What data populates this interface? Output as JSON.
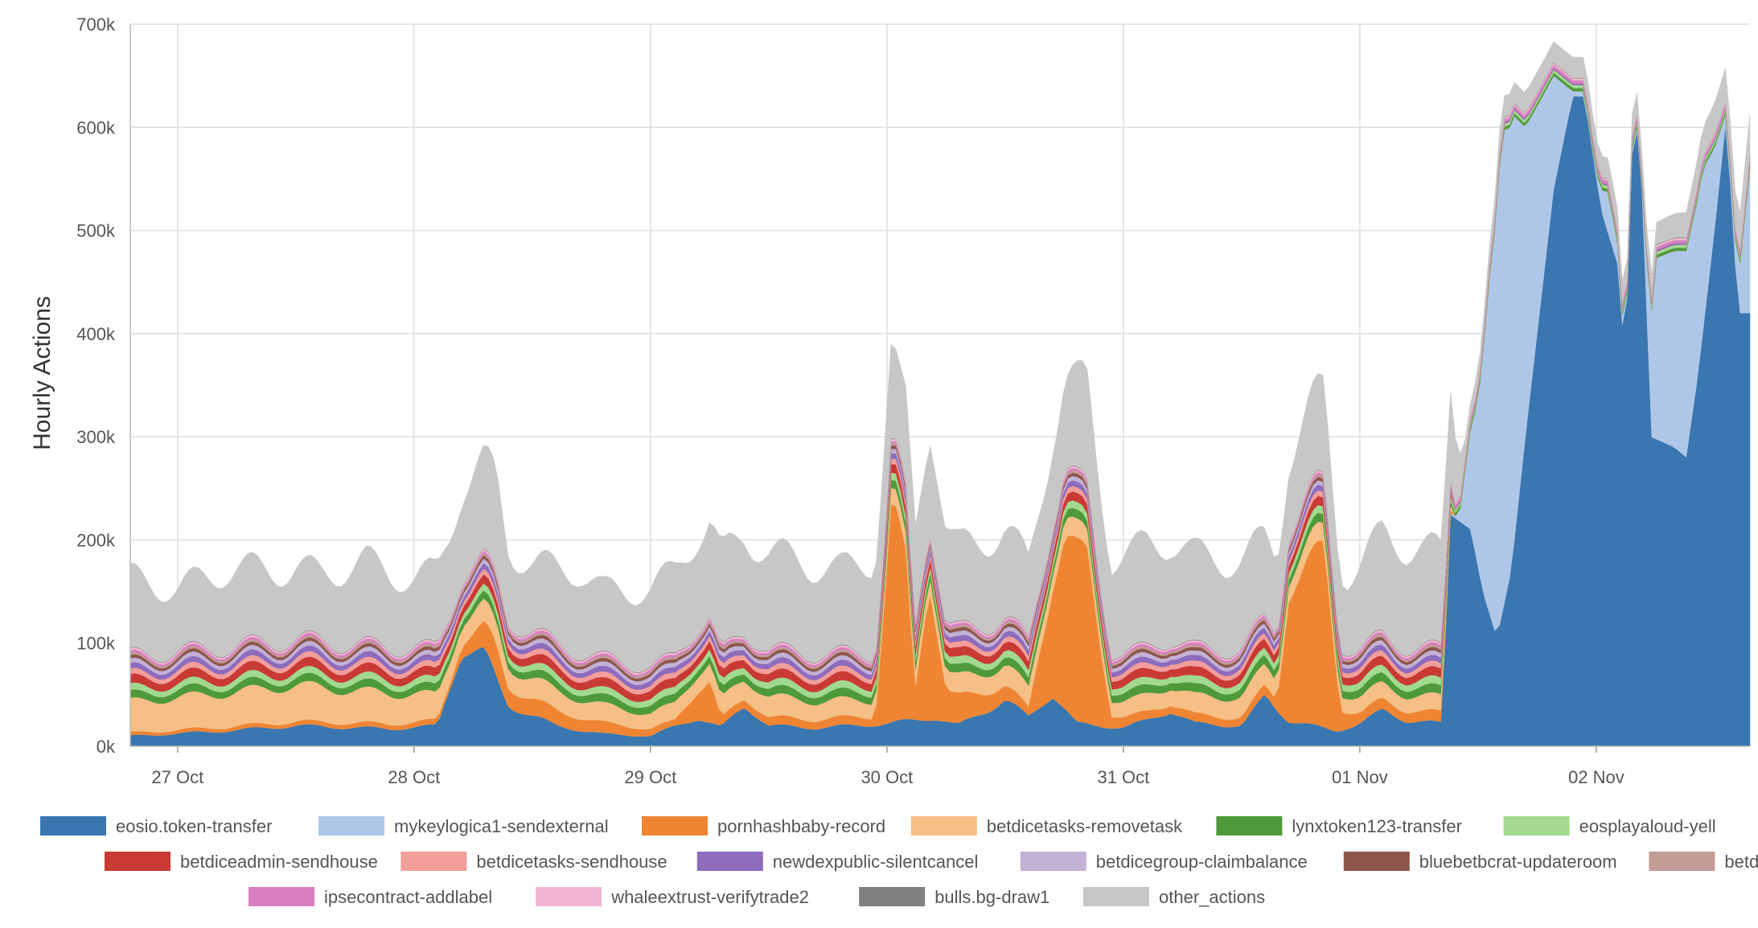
{
  "chart_data": {
    "type": "area",
    "stacked": true,
    "title": "",
    "xlabel": "",
    "ylabel": "Hourly Actions",
    "ylim": [
      0,
      700000
    ],
    "y_ticks": [
      "0k",
      "100k",
      "200k",
      "300k",
      "400k",
      "500k",
      "600k",
      "700k"
    ],
    "x_ticks": [
      "27 Oct",
      "28 Oct",
      "29 Oct",
      "30 Oct",
      "31 Oct",
      "01 Nov",
      "02 Nov"
    ],
    "x_range_days": [
      -0.2,
      6.65
    ],
    "grid": true,
    "legend_position": "bottom",
    "series": [
      {
        "name": "eosio.token-transfer",
        "color": "#3a76af",
        "anchors": [
          [
            -0.2,
            10000
          ],
          [
            0.2,
            15000
          ],
          [
            0.5,
            20000
          ],
          [
            0.9,
            17000
          ],
          [
            1.1,
            20000
          ],
          [
            1.2,
            95000
          ],
          [
            1.3,
            88000
          ],
          [
            1.4,
            40000
          ],
          [
            1.6,
            20000
          ],
          [
            1.8,
            12000
          ],
          [
            2.0,
            10000
          ],
          [
            2.2,
            28000
          ],
          [
            2.3,
            18000
          ],
          [
            2.4,
            40000
          ],
          [
            2.5,
            20000
          ],
          [
            2.7,
            18000
          ],
          [
            3.0,
            22000
          ],
          [
            3.2,
            28000
          ],
          [
            3.3,
            20000
          ],
          [
            3.5,
            45000
          ],
          [
            3.6,
            28000
          ],
          [
            3.7,
            52000
          ],
          [
            3.8,
            22000
          ],
          [
            4.0,
            18000
          ],
          [
            4.1,
            25000
          ],
          [
            4.2,
            35000
          ],
          [
            4.3,
            22000
          ],
          [
            4.5,
            20000
          ],
          [
            4.6,
            48000
          ],
          [
            4.7,
            25000
          ],
          [
            4.9,
            15000
          ],
          [
            5.0,
            22000
          ],
          [
            5.1,
            35000
          ],
          [
            5.2,
            25000
          ],
          [
            5.35,
            22000
          ],
          [
            5.38,
            225000
          ],
          [
            5.47,
            210000
          ],
          [
            5.52,
            150000
          ],
          [
            5.58,
            105000
          ],
          [
            5.64,
            170000
          ],
          [
            5.7,
            300000
          ],
          [
            5.76,
            420000
          ],
          [
            5.82,
            540000
          ],
          [
            5.9,
            630000
          ],
          [
            5.95,
            630000
          ],
          [
            6.02,
            520000
          ],
          [
            6.1,
            460000
          ],
          [
            6.12,
            360000
          ],
          [
            6.16,
            630000
          ],
          [
            6.2,
            520000
          ],
          [
            6.23,
            300000
          ],
          [
            6.33,
            290000
          ],
          [
            6.38,
            280000
          ],
          [
            6.43,
            360000
          ],
          [
            6.5,
            500000
          ],
          [
            6.55,
            610000
          ],
          [
            6.6,
            420000
          ],
          [
            6.65,
            420000
          ]
        ]
      },
      {
        "name": "mykeylogica1-sendexternal",
        "color": "#aec7e8",
        "anchors": [
          [
            -0.2,
            0
          ],
          [
            5.36,
            0
          ],
          [
            5.42,
            3000
          ],
          [
            5.5,
            160000
          ],
          [
            5.55,
            330000
          ],
          [
            5.6,
            470000
          ],
          [
            5.65,
            420000
          ],
          [
            5.7,
            300000
          ],
          [
            5.82,
            110000
          ],
          [
            5.9,
            5000
          ],
          [
            6.0,
            5000
          ],
          [
            6.05,
            40000
          ],
          [
            6.12,
            5000
          ],
          [
            6.2,
            5000
          ],
          [
            6.25,
            175000
          ],
          [
            6.38,
            200000
          ],
          [
            6.45,
            160000
          ],
          [
            6.5,
            80000
          ],
          [
            6.55,
            5000
          ],
          [
            6.6,
            30000
          ],
          [
            6.65,
            140000
          ]
        ]
      },
      {
        "name": "pornhashbaby-record",
        "color": "#ef8532",
        "anchors": [
          [
            -0.2,
            3000
          ],
          [
            1.15,
            5000
          ],
          [
            1.35,
            30000
          ],
          [
            1.4,
            18000
          ],
          [
            2.1,
            5000
          ],
          [
            2.25,
            40000
          ],
          [
            2.3,
            8000
          ],
          [
            2.95,
            8000
          ],
          [
            3.02,
            210000
          ],
          [
            3.08,
            150000
          ],
          [
            3.12,
            30000
          ],
          [
            3.18,
            140000
          ],
          [
            3.25,
            30000
          ],
          [
            3.6,
            8000
          ],
          [
            3.75,
            165000
          ],
          [
            3.85,
            160000
          ],
          [
            3.95,
            12000
          ],
          [
            4.05,
            8000
          ],
          [
            4.5,
            8000
          ],
          [
            4.65,
            10000
          ],
          [
            4.7,
            130000
          ],
          [
            4.85,
            170000
          ],
          [
            4.92,
            20000
          ],
          [
            5.0,
            10000
          ],
          [
            5.35,
            10000
          ],
          [
            5.4,
            0
          ],
          [
            6.65,
            0
          ]
        ]
      },
      {
        "name": "betdicetasks-removetask",
        "color": "#f5bf86",
        "anchors": [
          [
            -0.2,
            30000
          ],
          [
            0.5,
            35000
          ],
          [
            1.0,
            28000
          ],
          [
            1.2,
            20000
          ],
          [
            1.5,
            20000
          ],
          [
            2.0,
            15000
          ],
          [
            2.5,
            20000
          ],
          [
            3.0,
            15000
          ],
          [
            3.5,
            20000
          ],
          [
            4.0,
            15000
          ],
          [
            4.5,
            20000
          ],
          [
            5.0,
            15000
          ],
          [
            5.35,
            15000
          ],
          [
            5.4,
            0
          ],
          [
            6.65,
            0
          ]
        ]
      },
      {
        "name": "lynxtoken123-transfer",
        "color": "#4e9a3b",
        "anchors": [
          [
            -0.2,
            7000
          ],
          [
            5.35,
            8000
          ],
          [
            5.4,
            3000
          ],
          [
            6.65,
            3000
          ]
        ]
      },
      {
        "name": "eosplayaloud-yell",
        "color": "#a2d98f",
        "anchors": [
          [
            -0.2,
            6000
          ],
          [
            5.35,
            7000
          ],
          [
            5.4,
            3000
          ],
          [
            6.65,
            3000
          ]
        ]
      },
      {
        "name": "betdiceadmin-sendhouse",
        "color": "#c93a34",
        "anchors": [
          [
            -0.2,
            8000
          ],
          [
            5.35,
            8000
          ],
          [
            5.4,
            0
          ],
          [
            6.65,
            0
          ]
        ]
      },
      {
        "name": "betdicetasks-sendhouse",
        "color": "#f29e9a",
        "anchors": [
          [
            -0.2,
            5000
          ],
          [
            5.35,
            5000
          ],
          [
            5.4,
            0
          ],
          [
            6.65,
            0
          ]
        ]
      },
      {
        "name": "newdexpublic-silentcancel",
        "color": "#8d6bbd",
        "anchors": [
          [
            -0.2,
            5000
          ],
          [
            5.35,
            5000
          ],
          [
            5.4,
            1500
          ],
          [
            6.65,
            1500
          ]
        ]
      },
      {
        "name": "betdicegroup-claimbalance",
        "color": "#c3b2d6",
        "anchors": [
          [
            -0.2,
            4000
          ],
          [
            5.35,
            4000
          ],
          [
            5.4,
            0
          ],
          [
            6.65,
            0
          ]
        ]
      },
      {
        "name": "bluebetbcrat-updateroom",
        "color": "#8c564b",
        "anchors": [
          [
            -0.2,
            3000
          ],
          [
            5.35,
            3000
          ],
          [
            5.4,
            0
          ],
          [
            6.65,
            0
          ]
        ]
      },
      {
        "name": "betdicegroup-payout",
        "color": "#c39c95",
        "anchors": [
          [
            -0.2,
            2000
          ],
          [
            5.35,
            2000
          ],
          [
            5.4,
            0
          ],
          [
            6.65,
            0
          ]
        ]
      },
      {
        "name": "ipsecontract-addlabel",
        "color": "#d67ec0",
        "anchors": [
          [
            -0.2,
            2000
          ],
          [
            5.35,
            2000
          ],
          [
            5.4,
            3000
          ],
          [
            6.65,
            3000
          ]
        ]
      },
      {
        "name": "whaleextrust-verifytrade2",
        "color": "#efb5d1",
        "anchors": [
          [
            -0.2,
            2000
          ],
          [
            5.35,
            2000
          ],
          [
            5.4,
            2000
          ],
          [
            6.65,
            2000
          ]
        ]
      },
      {
        "name": "bulls.bg-draw1",
        "color": "#7f7f7f",
        "anchors": [
          [
            -0.2,
            500
          ],
          [
            6.65,
            500
          ]
        ]
      },
      {
        "name": "other_actions",
        "color": "#c7c7c7",
        "anchors": [
          [
            -0.2,
            75000
          ],
          [
            0.0,
            60000
          ],
          [
            0.2,
            75000
          ],
          [
            0.4,
            70000
          ],
          [
            0.6,
            65000
          ],
          [
            0.8,
            80000
          ],
          [
            1.0,
            65000
          ],
          [
            1.2,
            85000
          ],
          [
            1.35,
            95000
          ],
          [
            1.4,
            70000
          ],
          [
            1.5,
            65000
          ],
          [
            1.7,
            80000
          ],
          [
            1.8,
            65000
          ],
          [
            2.0,
            75000
          ],
          [
            2.2,
            90000
          ],
          [
            2.4,
            95000
          ],
          [
            2.6,
            90000
          ],
          [
            2.8,
            80000
          ],
          [
            3.0,
            95000
          ],
          [
            3.05,
            75000
          ],
          [
            3.1,
            90000
          ],
          [
            3.2,
            100000
          ],
          [
            3.3,
            80000
          ],
          [
            3.5,
            85000
          ],
          [
            3.6,
            75000
          ],
          [
            3.75,
            85000
          ],
          [
            3.85,
            100000
          ],
          [
            3.95,
            90000
          ],
          [
            4.1,
            100000
          ],
          [
            4.3,
            90000
          ],
          [
            4.5,
            85000
          ],
          [
            4.7,
            70000
          ],
          [
            4.85,
            88000
          ],
          [
            4.95,
            70000
          ],
          [
            5.1,
            100000
          ],
          [
            5.3,
            95000
          ],
          [
            5.38,
            90000
          ],
          [
            5.45,
            12000
          ],
          [
            5.6,
            20000
          ],
          [
            5.8,
            20000
          ],
          [
            6.2,
            20000
          ],
          [
            6.4,
            25000
          ],
          [
            6.6,
            35000
          ],
          [
            6.65,
            40000
          ]
        ]
      }
    ]
  }
}
